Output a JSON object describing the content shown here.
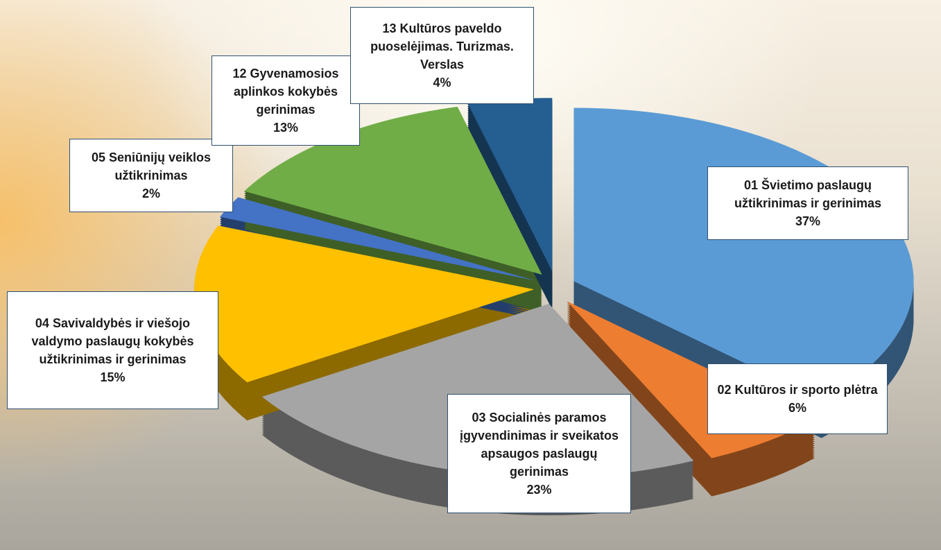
{
  "chart_data": {
    "type": "pie",
    "categories": [
      "01 Švietimo paslaugų užtikrinimas ir gerinimas",
      "02 Kultūros ir sporto plėtra",
      "03 Socialinės paramos įgyvendinimas ir sveikatos apsaugos paslaugų gerinimas",
      "04 Savivaldybės ir viešojo valdymo paslaugų kokybės užtikrinimas ir gerinimas",
      "05 Seniūnijų veiklos užtikrinimas",
      "12 Gyvenamosios aplinkos kokybės gerinimas",
      "13 Kultūros paveldo puoselėjimas. Turizmas. Verslas"
    ],
    "values": [
      37,
      6,
      23,
      15,
      2,
      13,
      4
    ],
    "value_labels": [
      "37%",
      "6%",
      "23%",
      "15%",
      "2%",
      "13%",
      "4%"
    ],
    "colors": [
      "#5b9bd5",
      "#ed7d31",
      "#a5a5a5",
      "#ffc000",
      "#4472c4",
      "#70ad47",
      "#255e91"
    ]
  }
}
